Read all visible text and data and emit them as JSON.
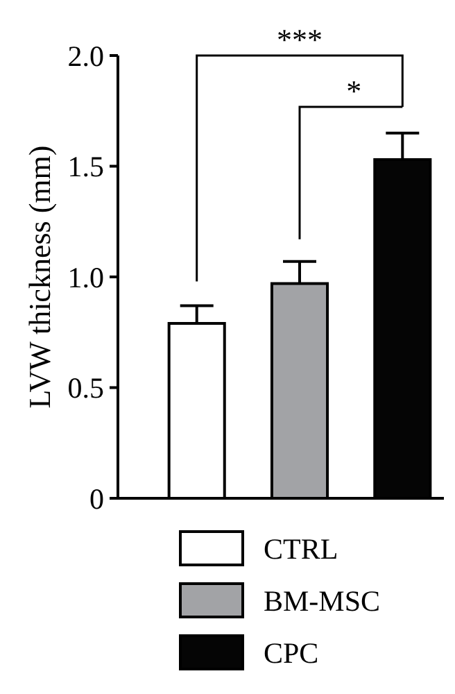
{
  "chart_data": {
    "type": "bar",
    "ylabel": "LVW thickness (mm)",
    "categories": [
      null,
      null,
      null
    ],
    "stacked": true,
    "series": [
      {
        "name": "CTRL",
        "color": "#ffffff",
        "values": [
          0.79,
          null,
          null
        ],
        "errors": [
          0.08,
          null,
          null
        ]
      },
      {
        "name": "BM-MSC",
        "color": "#a2a3a6",
        "values": [
          null,
          0.97,
          null
        ],
        "errors": [
          null,
          0.1,
          null
        ]
      },
      {
        "name": "CPC",
        "color": "#050505",
        "values": [
          null,
          null,
          1.53
        ],
        "errors": [
          null,
          null,
          0.12
        ]
      }
    ],
    "ylim": [
      0,
      2.0
    ],
    "yticks": [
      {
        "value": 0,
        "label": "0"
      },
      {
        "value": 0.5,
        "label": "0.5"
      },
      {
        "value": 1.0,
        "label": "1.0"
      },
      {
        "value": 1.5,
        "label": "1.5"
      },
      {
        "value": 2.0,
        "label": "2.0"
      }
    ],
    "tick_labels": "y",
    "legend": "bottom",
    "grid": false,
    "annotations": [
      "***",
      "*"
    ]
  }
}
